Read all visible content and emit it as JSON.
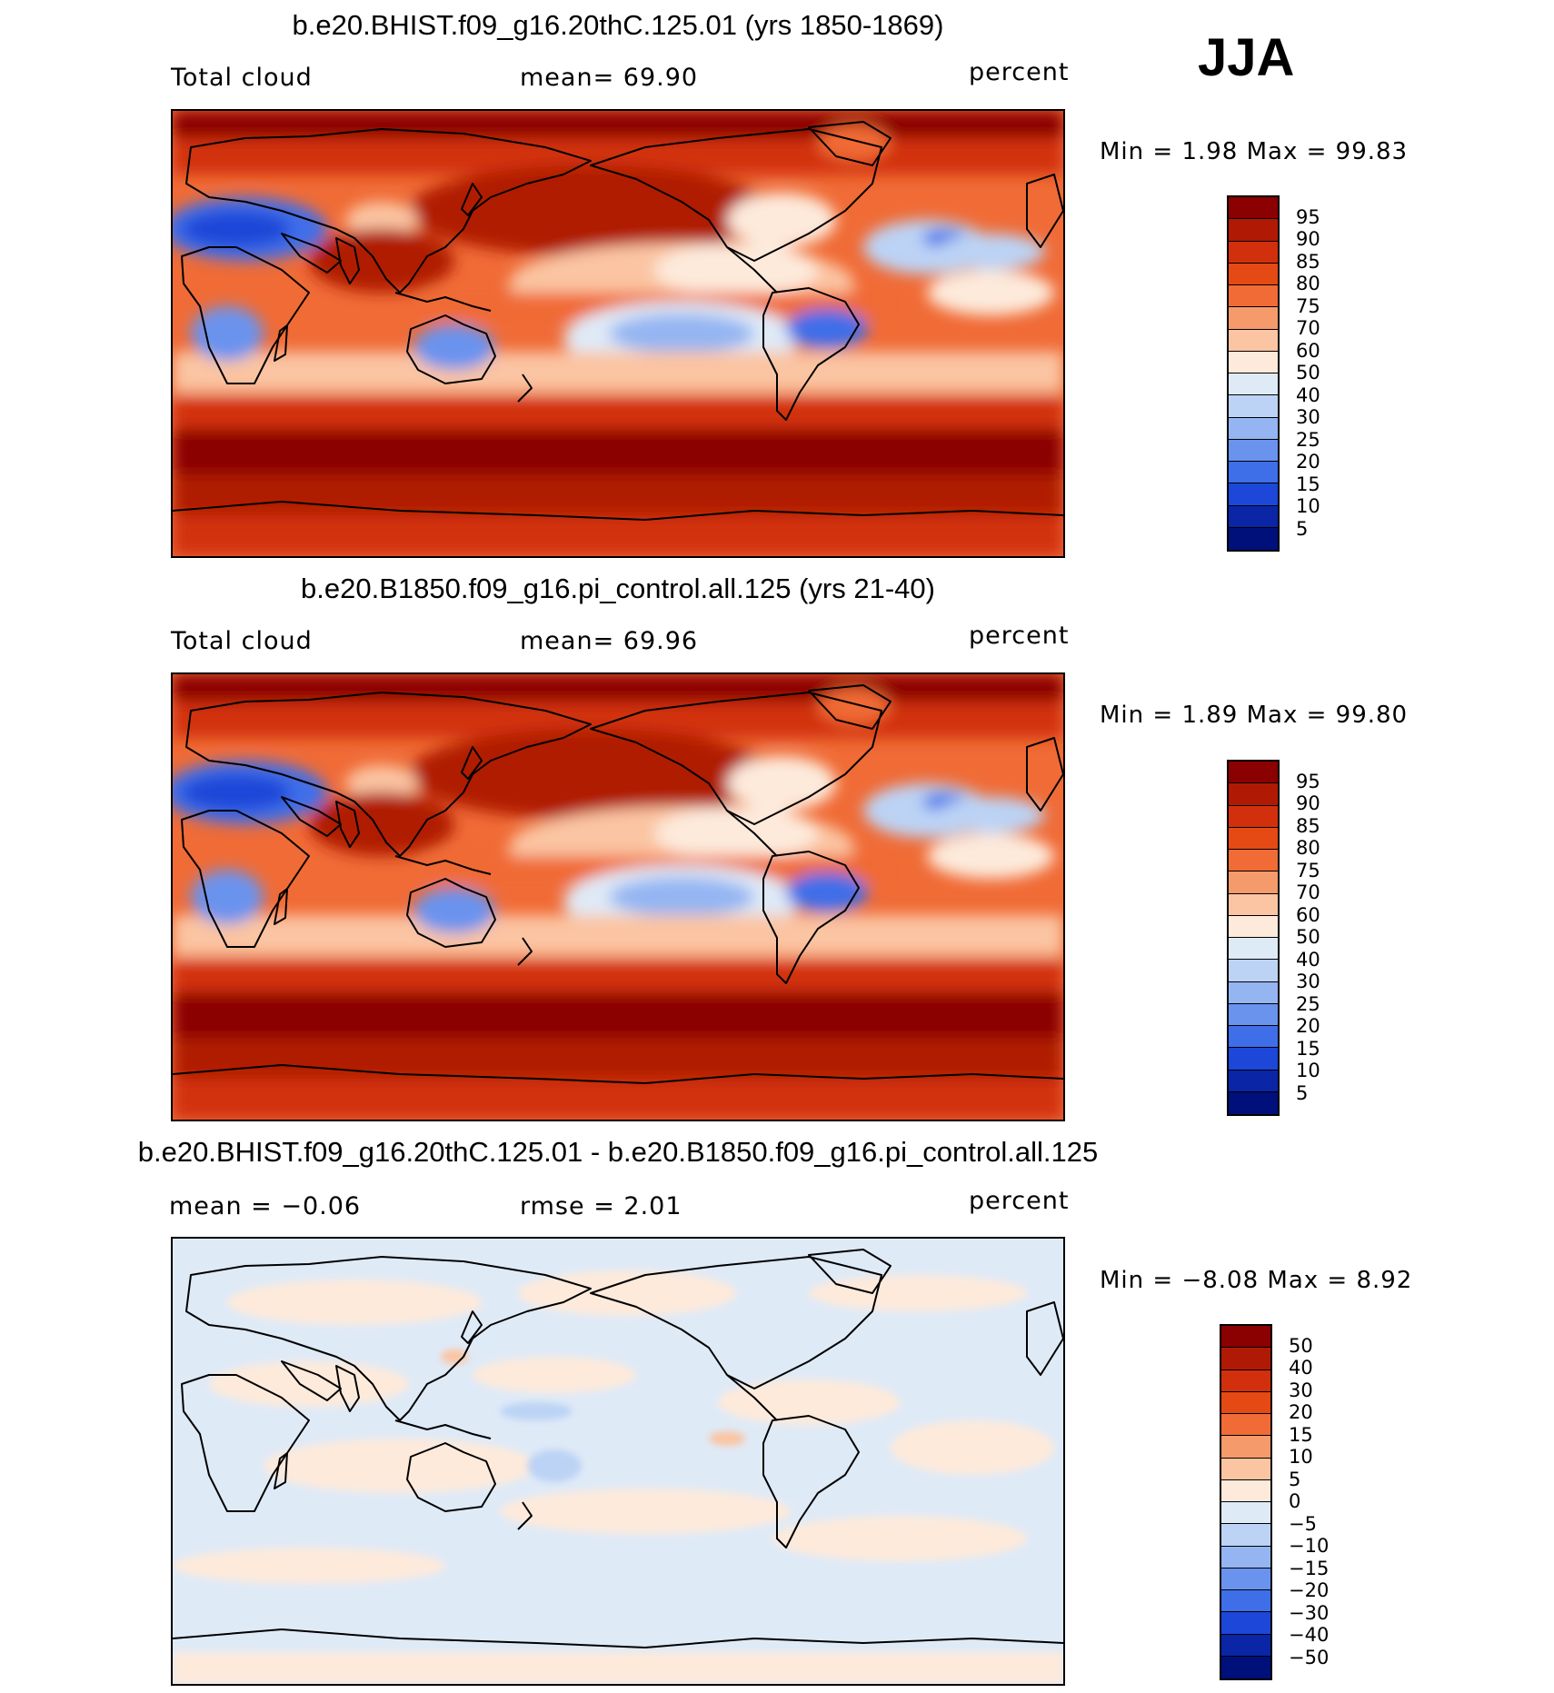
{
  "season": "JJA",
  "panels": [
    {
      "title": "b.e20.BHIST.f09_g16.20thC.125.01 (yrs 1850-1869)",
      "left_label": "Total cloud",
      "center_label": "mean=   69.90",
      "units": "percent",
      "minmax": "Min =    1.98 Max =   99.83",
      "map_type": "total-cloud"
    },
    {
      "title": "b.e20.B1850.f09_g16.pi_control.all.125 (yrs 21-40)",
      "left_label": "Total cloud",
      "center_label": "mean=   69.96",
      "units": "percent",
      "minmax": "Min =    1.89 Max =   99.80",
      "map_type": "total-cloud"
    },
    {
      "title": "b.e20.BHIST.f09_g16.20thC.125.01 - b.e20.B1850.f09_g16.pi_control.all.125",
      "left_label": "mean =  −0.06",
      "center_label": "rmse =    2.01",
      "units": "percent",
      "minmax": "Min =  −8.08 Max =    8.92",
      "map_type": "difference"
    }
  ],
  "colorbars": {
    "cloud": {
      "labels": [
        "95",
        "90",
        "85",
        "80",
        "75",
        "70",
        "60",
        "50",
        "40",
        "30",
        "25",
        "20",
        "15",
        "10",
        "5"
      ],
      "colors": [
        "#8b0000",
        "#b01a05",
        "#d2300c",
        "#e54914",
        "#f06b36",
        "#f59a6a",
        "#fbc4a2",
        "#fdeadb",
        "#dfeaf7",
        "#bcd3f5",
        "#94b5f2",
        "#6a93ee",
        "#3f6ee9",
        "#1c47d8",
        "#0a25a6",
        "#00107a"
      ]
    },
    "diff": {
      "labels": [
        "50",
        "40",
        "30",
        "20",
        "15",
        "10",
        "5",
        "0",
        "−5",
        "−10",
        "−15",
        "−20",
        "−30",
        "−40",
        "−50"
      ],
      "colors": [
        "#8b0000",
        "#b01a05",
        "#d2300c",
        "#e54914",
        "#f06b36",
        "#f59a6a",
        "#fbc4a2",
        "#fdeadb",
        "#dfeaf7",
        "#bcd3f5",
        "#94b5f2",
        "#6a93ee",
        "#3f6ee9",
        "#1c47d8",
        "#0a25a6",
        "#00107a"
      ]
    }
  }
}
